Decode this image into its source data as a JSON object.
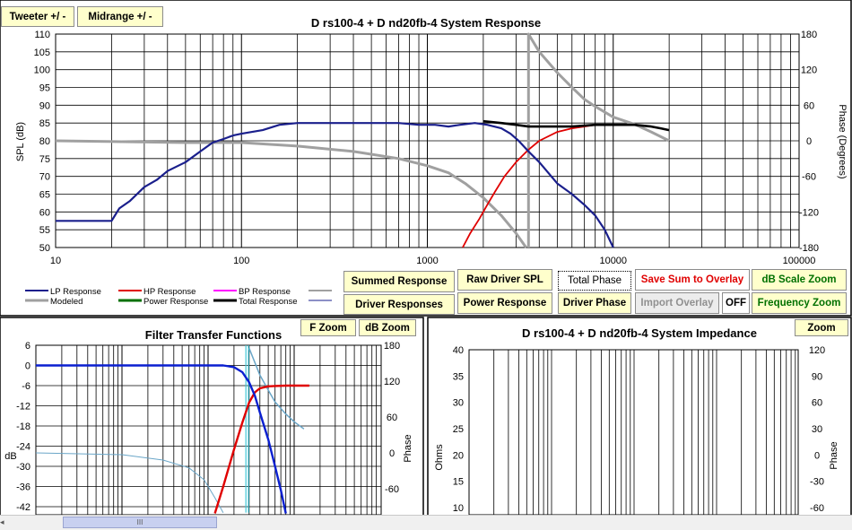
{
  "colors": {
    "lp": "#1a1f8c",
    "hp": "#e00000",
    "bp": "#ff00ff",
    "modeled": "#a0a0a0",
    "power": "#007000",
    "total": "#000000",
    "thin": "#6aa6c8",
    "cyan": "#40c8d8"
  },
  "buttons": {
    "tweeter": "Tweeter +/ -",
    "midrange": "Midrange  +/ -",
    "summed": "Summed Response",
    "raw": "Raw Driver SPL",
    "total_phase": "Total Phase",
    "save_sum": "Save Sum to Overlay",
    "db_scale_zoom": "dB Scale Zoom",
    "driver_responses": "Driver Responses",
    "power_response": "Power Response",
    "driver_phase": "Driver Phase",
    "import_overlay": "Import Overlay",
    "off": "OFF",
    "frequency_zoom": "Frequency Zoom",
    "f_zoom": "F Zoom",
    "db_zoom": "dB Zoom",
    "zoom": "Zoom"
  },
  "legend": [
    "LP Response",
    "HP Response",
    "BP Response",
    "Modeled",
    "Power Response",
    "Total Response"
  ],
  "scrollbar": {
    "thumb_label": "III"
  },
  "chart_data": [
    {
      "id": "system-response",
      "type": "line",
      "title": "D rs100-4 + D nd20fb-4    System Response",
      "ylabel": "SPL (dB)",
      "y2label": "Phase (Degrees)",
      "xscale": "log",
      "xlim": [
        10,
        100000
      ],
      "ylim": [
        50,
        110
      ],
      "y2lim": [
        -180,
        180
      ],
      "yticks": [
        50,
        55,
        60,
        65,
        70,
        75,
        80,
        85,
        90,
        95,
        100,
        105,
        110
      ],
      "y2ticks": [
        -180,
        -120,
        -60,
        0,
        60,
        120,
        180
      ],
      "xtick_labels": [
        "10",
        "100",
        "1000",
        "10000",
        "100000"
      ],
      "series": [
        {
          "name": "LP Response",
          "axis": "spl",
          "points": [
            [
              10,
              57.5
            ],
            [
              20,
              57.5
            ],
            [
              22,
              61
            ],
            [
              25,
              63
            ],
            [
              30,
              67
            ],
            [
              35,
              69
            ],
            [
              40,
              71.5
            ],
            [
              50,
              74
            ],
            [
              60,
              77
            ],
            [
              70,
              79.5
            ],
            [
              80,
              80.5
            ],
            [
              90,
              81.5
            ],
            [
              100,
              82
            ],
            [
              130,
              83
            ],
            [
              160,
              84.5
            ],
            [
              200,
              85
            ],
            [
              300,
              85
            ],
            [
              500,
              85
            ],
            [
              700,
              85
            ],
            [
              900,
              84.5
            ],
            [
              1100,
              84.5
            ],
            [
              1300,
              84
            ],
            [
              1500,
              84.5
            ],
            [
              1800,
              85
            ],
            [
              2100,
              84.5
            ],
            [
              2500,
              83.5
            ],
            [
              2800,
              82
            ],
            [
              3100,
              80
            ],
            [
              3500,
              77
            ],
            [
              4000,
              74
            ],
            [
              5000,
              68
            ],
            [
              6000,
              65
            ],
            [
              7000,
              62
            ],
            [
              8000,
              59
            ],
            [
              9000,
              55
            ],
            [
              10000,
              50
            ]
          ]
        },
        {
          "name": "HP Response",
          "axis": "spl",
          "points": [
            [
              1550,
              50
            ],
            [
              1700,
              54
            ],
            [
              1900,
              58
            ],
            [
              2100,
              62
            ],
            [
              2300,
              65.5
            ],
            [
              2600,
              70
            ],
            [
              3000,
              74
            ],
            [
              3500,
              77.5
            ],
            [
              4000,
              80
            ],
            [
              5000,
              82.5
            ],
            [
              6000,
              83.5
            ],
            [
              7000,
              84
            ],
            [
              8000,
              84.5
            ]
          ]
        },
        {
          "name": "Total Response",
          "axis": "spl",
          "points": [
            [
              2000,
              85.5
            ],
            [
              2500,
              85
            ],
            [
              3000,
              84.5
            ],
            [
              3500,
              84
            ],
            [
              4000,
              84
            ],
            [
              5000,
              84
            ],
            [
              6000,
              84
            ],
            [
              8000,
              84.5
            ],
            [
              10000,
              84.5
            ],
            [
              13000,
              84.5
            ],
            [
              16000,
              84
            ],
            [
              18000,
              83.5
            ],
            [
              20000,
              83
            ]
          ]
        },
        {
          "name": "Modeled",
          "axis": "spl",
          "points": [
            [
              10,
              80
            ],
            [
              50,
              79.5
            ],
            [
              100,
              79.5
            ],
            [
              200,
              78.5
            ],
            [
              400,
              77
            ],
            [
              700,
              75
            ],
            [
              1000,
              73
            ],
            [
              1300,
              71
            ],
            [
              1600,
              68
            ],
            [
              2000,
              64
            ],
            [
              2500,
              59
            ],
            [
              3000,
              54
            ],
            [
              3400,
              50
            ]
          ]
        },
        {
          "name": "Phase",
          "axis": "phase",
          "points": [
            [
              3500,
              -180
            ],
            [
              3500,
              180
            ],
            [
              4000,
              150
            ],
            [
              5000,
              115
            ],
            [
              6000,
              90
            ],
            [
              7000,
              70
            ],
            [
              8000,
              58
            ],
            [
              10000,
              40
            ],
            [
              13000,
              28
            ],
            [
              16000,
              15
            ],
            [
              20000,
              0
            ]
          ]
        }
      ]
    },
    {
      "id": "filter-transfer",
      "type": "line",
      "title": "Filter Transfer Functions",
      "ylabel": "dB",
      "y2label": "Phase",
      "xscale": "log",
      "xlim": [
        10,
        100000
      ],
      "ylim": [
        -44,
        6
      ],
      "y2lim": [
        -100,
        180
      ],
      "yticks": [
        6,
        0,
        -6,
        -12,
        -18,
        -24,
        -30,
        -36,
        -42
      ],
      "y2ticks": [
        180,
        120,
        60,
        0,
        -60
      ],
      "series": [
        {
          "name": "LP Transfer",
          "axis": "db",
          "points": [
            [
              10,
              0
            ],
            [
              1000,
              0
            ],
            [
              1500,
              0
            ],
            [
              2000,
              -0.5
            ],
            [
              2500,
              -2
            ],
            [
              3000,
              -5
            ],
            [
              3500,
              -9
            ],
            [
              4000,
              -14
            ],
            [
              5000,
              -22
            ],
            [
              6000,
              -30
            ],
            [
              7000,
              -37
            ],
            [
              8000,
              -44
            ]
          ]
        },
        {
          "name": "HP Transfer",
          "axis": "db",
          "points": [
            [
              1200,
              -44
            ],
            [
              1500,
              -36
            ],
            [
              2000,
              -25
            ],
            [
              2500,
              -17
            ],
            [
              3000,
              -11
            ],
            [
              3500,
              -8
            ],
            [
              4000,
              -6.8
            ],
            [
              5000,
              -6.2
            ],
            [
              6000,
              -6.1
            ],
            [
              8000,
              -6
            ],
            [
              15000,
              -6
            ]
          ]
        },
        {
          "name": "LP Phase",
          "axis": "phase",
          "points": [
            [
              10,
              0
            ],
            [
              100,
              -3
            ],
            [
              300,
              -12
            ],
            [
              600,
              -25
            ],
            [
              900,
              -45
            ],
            [
              1200,
              -75
            ],
            [
              1500,
              -100
            ]
          ]
        },
        {
          "name": "HP Phase",
          "axis": "phase",
          "points": [
            [
              3000,
              175
            ],
            [
              3300,
              160
            ],
            [
              4000,
              130
            ],
            [
              5000,
              105
            ],
            [
              6000,
              85
            ],
            [
              8000,
              65
            ],
            [
              10000,
              52
            ],
            [
              13000,
              40
            ]
          ]
        }
      ]
    },
    {
      "id": "system-impedance",
      "type": "line",
      "title": "D rs100-4 + D nd20fb-4    System Impedance",
      "ylabel": "Ohms",
      "y2label": "Phase",
      "xscale": "log",
      "ylim": [
        10,
        40
      ],
      "y2lim": [
        -60,
        120
      ],
      "yticks": [
        40,
        35,
        30,
        25,
        20,
        15,
        10
      ],
      "y2ticks": [
        120,
        90,
        60,
        30,
        0,
        -30,
        -60
      ],
      "series": []
    }
  ]
}
